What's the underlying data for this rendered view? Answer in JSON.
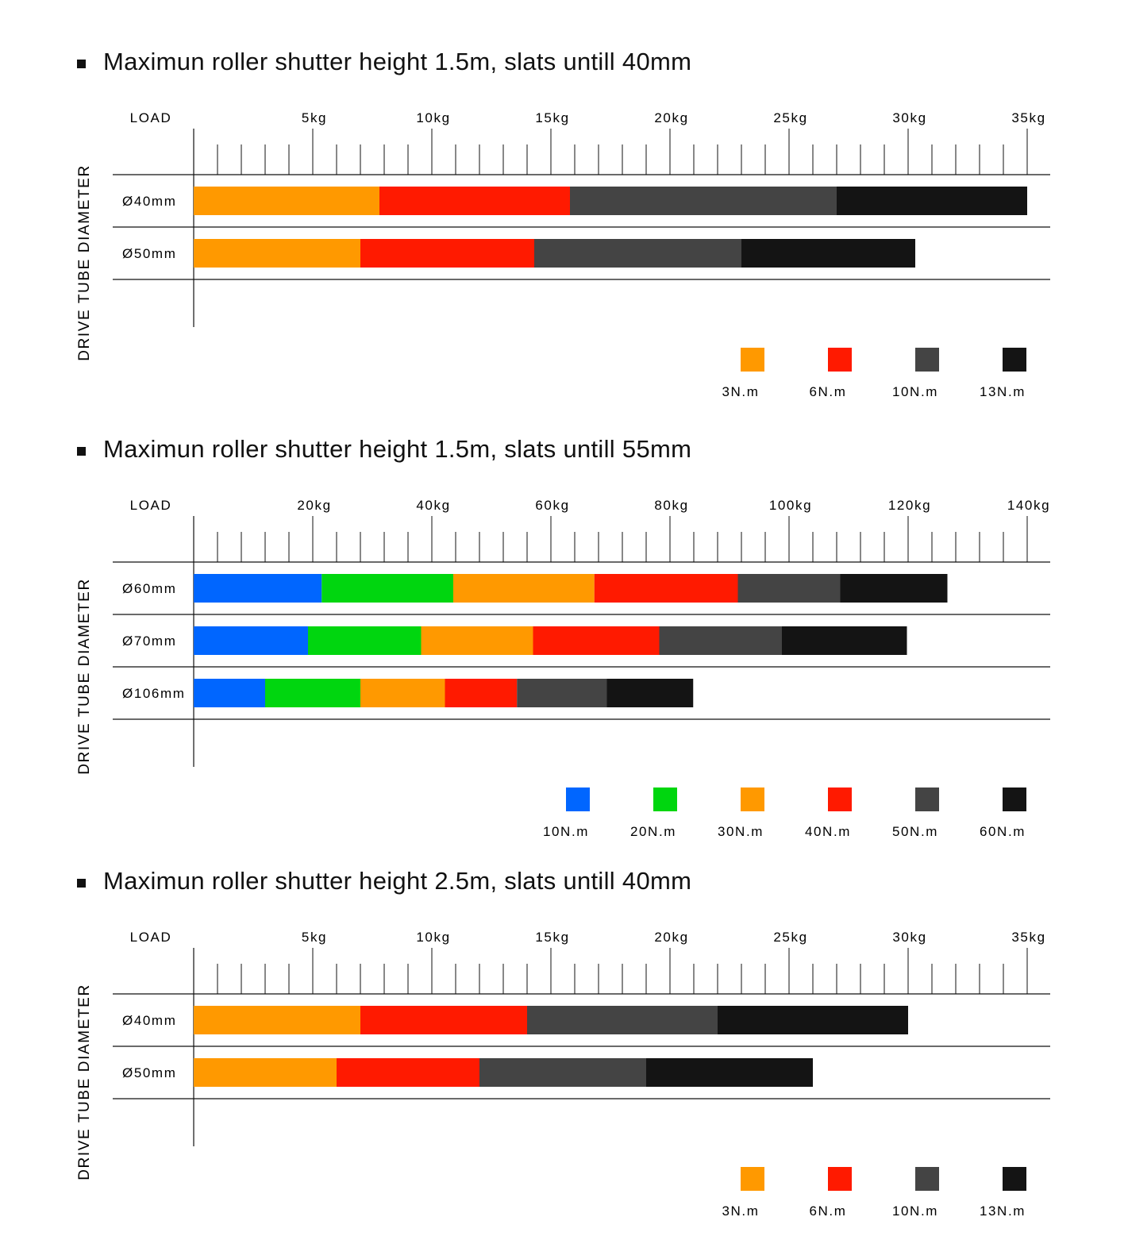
{
  "chart_data": [
    {
      "type": "bar",
      "orientation": "horizontal",
      "stacked": true,
      "title": "Maximun roller shutter height 1.5m, slats untill 40mm",
      "xlabel": "LOAD",
      "ylabel": "DRIVE TUBE DIAMETER",
      "xlim": [
        0,
        35
      ],
      "x_ticks": [
        "5kg",
        "10kg",
        "15kg",
        "20kg",
        "25kg",
        "30kg",
        "35kg"
      ],
      "minor_tick_step": 1,
      "legend_position": "bottom-right",
      "categories": [
        "Ø40mm",
        "Ø50mm"
      ],
      "series": [
        {
          "name": "3N.m",
          "color": "#ff9900",
          "values": [
            7.8,
            7.0
          ]
        },
        {
          "name": "6N.m",
          "color": "#ff1a00",
          "values": [
            8.0,
            7.3
          ]
        },
        {
          "name": "10N.m",
          "color": "#444444",
          "values": [
            11.2,
            8.7
          ]
        },
        {
          "name": "13N.m",
          "color": "#141414",
          "values": [
            8.0,
            7.3
          ]
        }
      ]
    },
    {
      "type": "bar",
      "orientation": "horizontal",
      "stacked": true,
      "title": "Maximun roller shutter height 1.5m, slats untill 55mm",
      "xlabel": "LOAD",
      "ylabel": "DRIVE TUBE DIAMETER",
      "xlim": [
        0,
        140
      ],
      "x_ticks": [
        "20kg",
        "40kg",
        "60kg",
        "80kg",
        "100kg",
        "120kg",
        "140kg"
      ],
      "minor_tick_step": 4,
      "legend_position": "bottom-right",
      "categories": [
        "Ø60mm",
        "Ø70mm",
        "Ø106mm"
      ],
      "series": [
        {
          "name": "10N.m",
          "color": "#0066ff",
          "values": [
            21.5,
            19.2,
            12.0
          ]
        },
        {
          "name": "20N.m",
          "color": "#00d60f",
          "values": [
            22.1,
            19.0,
            16.0
          ]
        },
        {
          "name": "30N.m",
          "color": "#ff9900",
          "values": [
            23.7,
            18.8,
            14.2
          ]
        },
        {
          "name": "40N.m",
          "color": "#ff1a00",
          "values": [
            24.1,
            21.2,
            12.1
          ]
        },
        {
          "name": "50N.m",
          "color": "#444444",
          "values": [
            17.2,
            20.6,
            15.1
          ]
        },
        {
          "name": "60N.m",
          "color": "#141414",
          "values": [
            18.0,
            21.0,
            14.5
          ]
        }
      ]
    },
    {
      "type": "bar",
      "orientation": "horizontal",
      "stacked": true,
      "title": "Maximun roller shutter height 2.5m, slats untill 40mm",
      "xlabel": "LOAD",
      "ylabel": "DRIVE TUBE DIAMETER",
      "xlim": [
        0,
        35
      ],
      "x_ticks": [
        "5kg",
        "10kg",
        "15kg",
        "20kg",
        "25kg",
        "30kg",
        "35kg"
      ],
      "minor_tick_step": 1,
      "legend_position": "bottom-right",
      "categories": [
        "Ø40mm",
        "Ø50mm"
      ],
      "series": [
        {
          "name": "3N.m",
          "color": "#ff9900",
          "values": [
            7.0,
            6.0
          ]
        },
        {
          "name": "6N.m",
          "color": "#ff1a00",
          "values": [
            7.0,
            6.0
          ]
        },
        {
          "name": "10N.m",
          "color": "#444444",
          "values": [
            8.0,
            7.0
          ]
        },
        {
          "name": "13N.m",
          "color": "#141414",
          "values": [
            8.0,
            7.0
          ]
        }
      ]
    }
  ]
}
